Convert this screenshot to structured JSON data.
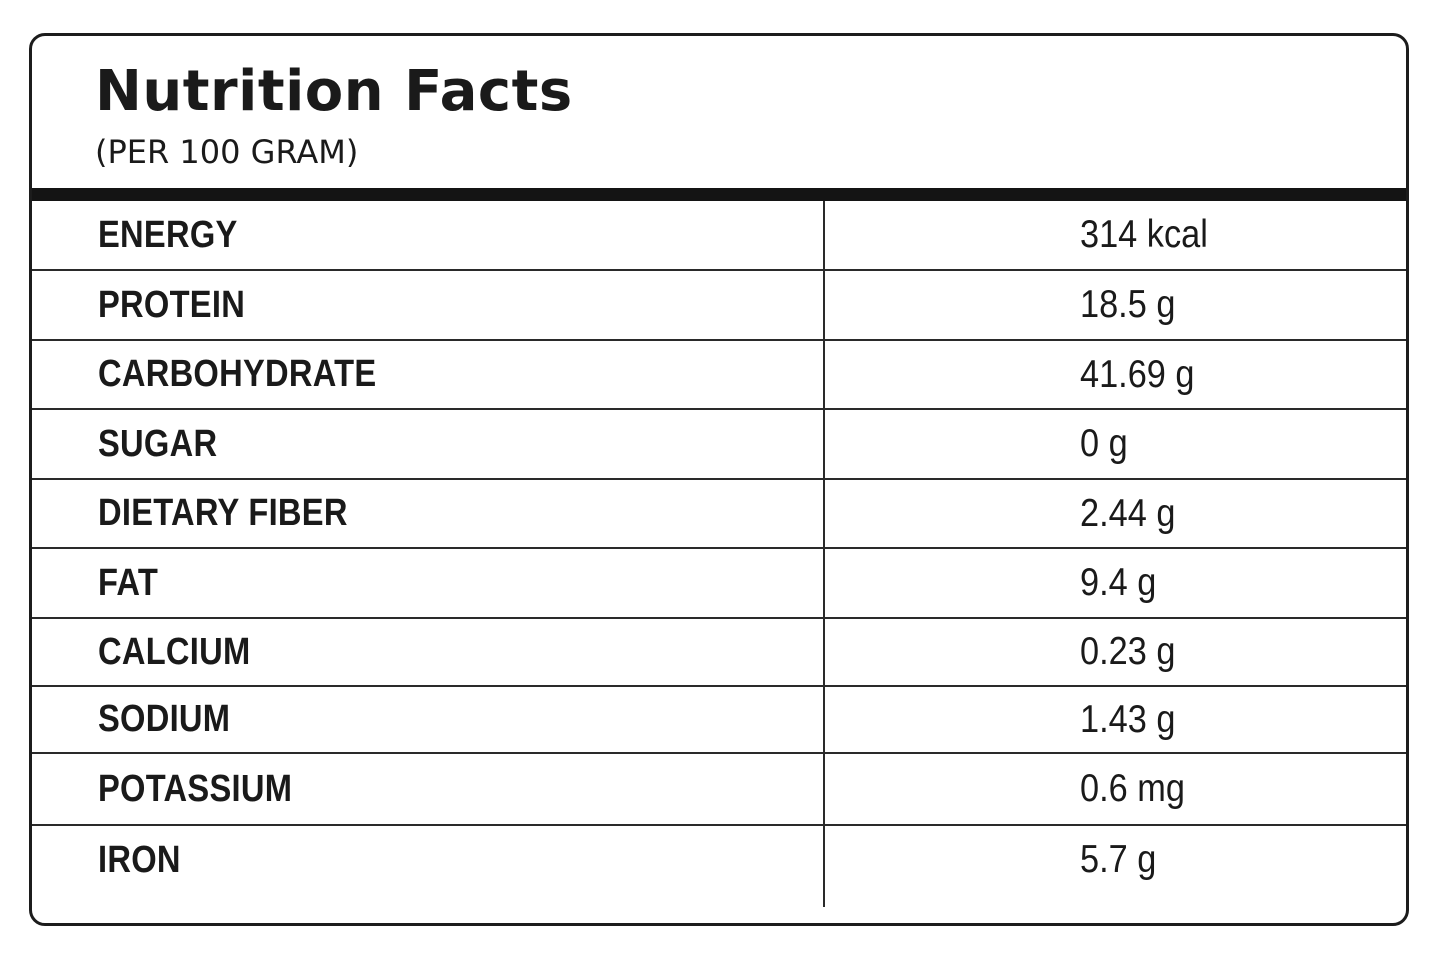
{
  "label": {
    "title": "Nutrition Facts",
    "subtitle": "(PER 100 GRAM)"
  },
  "rows": [
    {
      "name": "ENERGY",
      "value": "314  kcal"
    },
    {
      "name": "PROTEIN",
      "value": "18.5 g"
    },
    {
      "name": "CARBOHYDRATE",
      "value": "41.69 g"
    },
    {
      "name": "SUGAR",
      "value": "0 g"
    },
    {
      "name": "DIETARY FIBER",
      "value": "2.44 g"
    },
    {
      "name": "FAT",
      "value": "9.4 g"
    },
    {
      "name": "CALCIUM",
      "value": "0.23 g"
    },
    {
      "name": "SODIUM",
      "value": "1.43 g"
    },
    {
      "name": "POTASSIUM",
      "value": "0.6 mg"
    },
    {
      "name": "IRON",
      "value": "5.7 g"
    }
  ]
}
